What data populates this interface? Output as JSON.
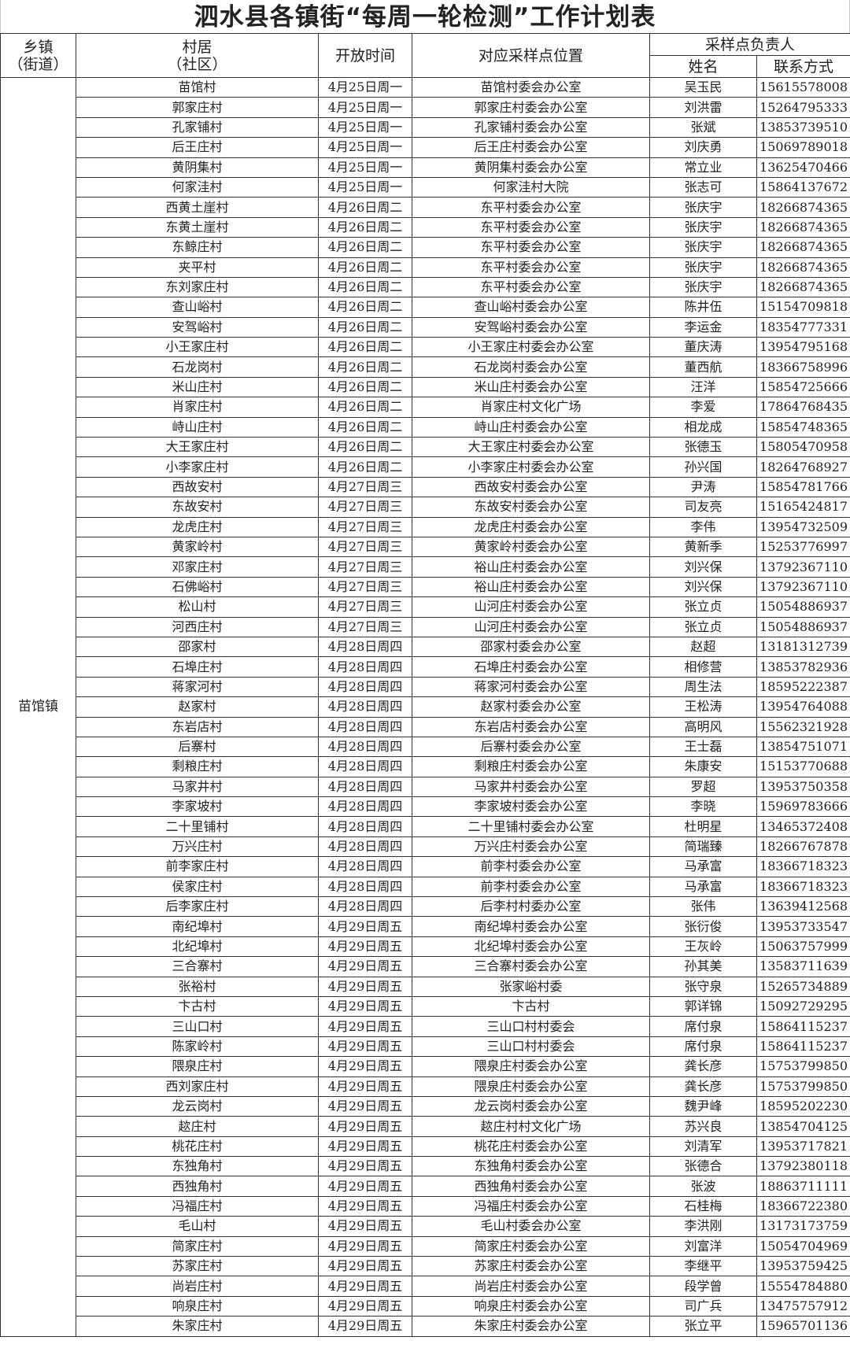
{
  "title": "泗水县各镇街“每周一轮检测”工作计划表",
  "headers": {
    "town": "乡镇\n（街道）",
    "town_line1": "乡镇",
    "town_line2": "（街道）",
    "village_line1": "村居",
    "village_line2": "（社区）",
    "open_time": "开放时间",
    "location": "对应采样点位置",
    "person_in_charge": "采样点负责人",
    "name": "姓名",
    "contact": "联系方式"
  },
  "town": "苗馆镇",
  "rows": [
    [
      "苗馆村",
      "4月25日周一",
      "苗馆村委会办公室",
      "吴玉民",
      "15615578008"
    ],
    [
      "郭家庄村",
      "4月25日周一",
      "郭家庄村委会办公室",
      "刘洪雷",
      "15264795333"
    ],
    [
      "孔家铺村",
      "4月25日周一",
      "孔家铺村委会办公室",
      "张斌",
      "13853739510"
    ],
    [
      "后王庄村",
      "4月25日周一",
      "后王庄村委会办公室",
      "刘庆勇",
      "15069789018"
    ],
    [
      "黄阴集村",
      "4月25日周一",
      "黄阴集村委会办公室",
      "常立业",
      "13625470466"
    ],
    [
      "何家洼村",
      "4月25日周一",
      "何家洼村大院",
      "张志可",
      "15864137672"
    ],
    [
      "西黄土崖村",
      "4月26日周二",
      "东平村委会办公室",
      "张庆宇",
      "18266874365"
    ],
    [
      "东黄土崖村",
      "4月26日周二",
      "东平村委会办公室",
      "张庆宇",
      "18266874365"
    ],
    [
      "东鲸庄村",
      "4月26日周二",
      "东平村委会办公室",
      "张庆宇",
      "18266874365"
    ],
    [
      "夹平村",
      "4月26日周二",
      "东平村委会办公室",
      "张庆宇",
      "18266874365"
    ],
    [
      "东刘家庄村",
      "4月26日周二",
      "东平村委会办公室",
      "张庆宇",
      "18266874365"
    ],
    [
      "查山峪村",
      "4月26日周二",
      "查山峪村委会办公室",
      "陈井伍",
      "15154709818"
    ],
    [
      "安驾峪村",
      "4月26日周二",
      "安驾峪村委会办公室",
      "李运金",
      "18354777331"
    ],
    [
      "小王家庄村",
      "4月26日周二",
      "小王家庄村委会办公室",
      "董庆涛",
      "13954795168"
    ],
    [
      "石龙岗村",
      "4月26日周二",
      "石龙岗村委会办公室",
      "董西航",
      "18366758996"
    ],
    [
      "米山庄村",
      "4月26日周二",
      "米山庄村委会办公室",
      "汪洋",
      "15854725666"
    ],
    [
      "肖家庄村",
      "4月26日周二",
      "肖家庄村文化广场",
      "李爱",
      "17864768435"
    ],
    [
      "峙山庄村",
      "4月26日周二",
      "峙山庄村委会办公室",
      "相龙成",
      "15854748365"
    ],
    [
      "大王家庄村",
      "4月26日周二",
      "大王家庄村委会办公室",
      "张德玉",
      "15805470958"
    ],
    [
      "小李家庄村",
      "4月26日周二",
      "小李家庄村委会办公室",
      "孙兴国",
      "18264768927"
    ],
    [
      "西故安村",
      "4月27日周三",
      "西故安村委会办公室",
      "尹涛",
      "15854781766"
    ],
    [
      "东故安村",
      "4月27日周三",
      "东故安村委会办公室",
      "司友亮",
      "15165424817"
    ],
    [
      "龙虎庄村",
      "4月27日周三",
      "龙虎庄村委会办公室",
      "李伟",
      "13954732509"
    ],
    [
      "黄家岭村",
      "4月27日周三",
      "黄家岭村委会办公室",
      "黄新季",
      "15253776997"
    ],
    [
      "邓家庄村",
      "4月27日周三",
      "裕山庄村委会办公室",
      "刘兴保",
      "13792367110"
    ],
    [
      "石佛峪村",
      "4月27日周三",
      "裕山庄村委会办公室",
      "刘兴保",
      "13792367110"
    ],
    [
      "松山村",
      "4月27日周三",
      "山河庄村委会办公室",
      "张立贞",
      "15054886937"
    ],
    [
      "河西庄村",
      "4月27日周三",
      "山河庄村委会办公室",
      "张立贞",
      "15054886937"
    ],
    [
      "邵家村",
      "4月28日周四",
      "邵家村委会办公室",
      "赵超",
      "13181312739"
    ],
    [
      "石埠庄村",
      "4月28日周四",
      "石埠庄村委会办公室",
      "相修营",
      "13853782936"
    ],
    [
      "蒋家河村",
      "4月28日周四",
      "蒋家河村委会办公室",
      "周生法",
      "18595222387"
    ],
    [
      "赵家村",
      "4月28日周四",
      "赵家村委会办公室",
      "王松涛",
      "13954764088"
    ],
    [
      "东岩店村",
      "4月28日周四",
      "东岩店村委会办公室",
      "高明风",
      "15562321928"
    ],
    [
      "后寨村",
      "4月28日周四",
      "后寨村委会办公室",
      "王士磊",
      "13854751071"
    ],
    [
      "剩粮庄村",
      "4月28日周四",
      "剩粮庄村委会办公室",
      "朱康安",
      "15153770688"
    ],
    [
      "马家井村",
      "4月28日周四",
      "马家井村委会办公室",
      "罗超",
      "13953750358"
    ],
    [
      "李家坡村",
      "4月28日周四",
      "李家坡村委会办公室",
      "李晓",
      "15969783666"
    ],
    [
      "二十里铺村",
      "4月28日周四",
      "二十里铺村委会办公室",
      "杜明星",
      "13465372408"
    ],
    [
      "万兴庄村",
      "4月28日周四",
      "万兴庄村委会办公室",
      "简瑞臻",
      "18266767878"
    ],
    [
      "前李家庄村",
      "4月28日周四",
      "前李村委会办公室",
      "马承富",
      "18366718323"
    ],
    [
      "侯家庄村",
      "4月28日周四",
      "前李村委会办公室",
      "马承富",
      "18366718323"
    ],
    [
      "后李家庄村",
      "4月28日周四",
      "后李村村委办公室",
      "张伟",
      "13639412568"
    ],
    [
      "南纪埠村",
      "4月29日周五",
      "南纪埠村委会办公室",
      "张衍俊",
      "13953733547"
    ],
    [
      "北纪埠村",
      "4月29日周五",
      "北纪埠村委会办公室",
      "王灰岭",
      "15063757999"
    ],
    [
      "三合寨村",
      "4月29日周五",
      "三合寨村委会办公室",
      "孙其美",
      "13583711639"
    ],
    [
      "张裕村",
      "4月29日周五",
      "张家峪村委",
      "张守泉",
      "15265734889"
    ],
    [
      "卞古村",
      "4月29日周五",
      "卞古村",
      "郭详锦",
      "15092729295"
    ],
    [
      "三山口村",
      "4月29日周五",
      "三山口村村委会",
      "席付泉",
      "15864115237"
    ],
    [
      "陈家岭村",
      "4月29日周五",
      "三山口村村委会",
      "席付泉",
      "15864115237"
    ],
    [
      "隈泉庄村",
      "4月29日周五",
      "隈泉庄村委会办公室",
      "龚长彦",
      "15753799850"
    ],
    [
      "西刘家庄村",
      "4月29日周五",
      "隈泉庄村委会办公室",
      "龚长彦",
      "15753799850"
    ],
    [
      "龙云岗村",
      "4月29日周五",
      "龙云岗村委会办公室",
      "魏尹峰",
      "18595202230"
    ],
    [
      "趑庄村",
      "4月29日周五",
      "趑庄村村文化广场",
      "苏兴良",
      "13854704125"
    ],
    [
      "桃花庄村",
      "4月29日周五",
      "桃花庄村委会办公室",
      "刘清军",
      "13953717821"
    ],
    [
      "东独角村",
      "4月29日周五",
      "东独角村委会办公室",
      "张德合",
      "13792380118"
    ],
    [
      "西独角村",
      "4月29日周五",
      "西独角村委会办公室",
      "张波",
      "18863711111"
    ],
    [
      "冯福庄村",
      "4月29日周五",
      "冯福庄村委会办公室",
      "石桂梅",
      "18366722380"
    ],
    [
      "毛山村",
      "4月29日周五",
      "毛山村委会办公室",
      "李洪刚",
      "13173173759"
    ],
    [
      "简家庄村",
      "4月29日周五",
      "简家庄村委会办公室",
      "刘富洋",
      "15054704969"
    ],
    [
      "苏家庄村",
      "4月29日周五",
      "苏家庄村委会办公室",
      "李继平",
      "13953759425"
    ],
    [
      "尚岩庄村",
      "4月29日周五",
      "尚岩庄村委会办公室",
      "段学曾",
      "15554784880"
    ],
    [
      "响泉庄村",
      "4月29日周五",
      "响泉庄村委会办公室",
      "司广兵",
      "13475757912"
    ],
    [
      "朱家庄村",
      "4月29日周五",
      "朱家庄村委会办公室",
      "张立平",
      "15965701136"
    ]
  ]
}
